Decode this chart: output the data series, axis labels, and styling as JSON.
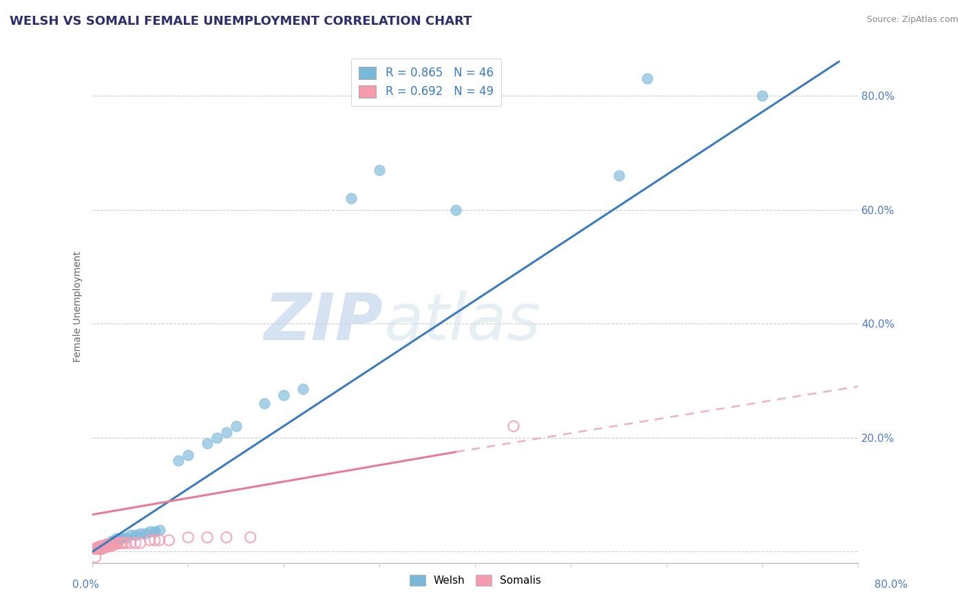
{
  "title": "WELSH VS SOMALI FEMALE UNEMPLOYMENT CORRELATION CHART",
  "source": "Source: ZipAtlas.com",
  "ylabel": "Female Unemployment",
  "y_ticks": [
    0.0,
    0.2,
    0.4,
    0.6,
    0.8
  ],
  "y_tick_labels": [
    "",
    "20.0%",
    "40.0%",
    "60.0%",
    "80.0%"
  ],
  "xlim": [
    0.0,
    0.8
  ],
  "ylim": [
    -0.02,
    0.88
  ],
  "welsh_R": 0.865,
  "welsh_N": 46,
  "somali_R": 0.692,
  "somali_N": 49,
  "welsh_color": "#7ab8d9",
  "somali_color": "#f49bae",
  "welsh_line_color": "#3a7bbf",
  "somali_line_solid_color": "#e87a96",
  "somali_line_dash_color": "#f0b0c0",
  "background_color": "#ffffff",
  "title_color": "#2e2e6e",
  "title_fontsize": 13,
  "welsh_scatter": [
    [
      0.003,
      0.005
    ],
    [
      0.005,
      0.005
    ],
    [
      0.007,
      0.005
    ],
    [
      0.008,
      0.008
    ],
    [
      0.008,
      0.01
    ],
    [
      0.009,
      0.005
    ],
    [
      0.009,
      0.008
    ],
    [
      0.01,
      0.005
    ],
    [
      0.01,
      0.008
    ],
    [
      0.01,
      0.01
    ],
    [
      0.012,
      0.008
    ],
    [
      0.012,
      0.01
    ],
    [
      0.013,
      0.01
    ],
    [
      0.015,
      0.01
    ],
    [
      0.015,
      0.013
    ],
    [
      0.018,
      0.015
    ],
    [
      0.02,
      0.015
    ],
    [
      0.02,
      0.018
    ],
    [
      0.022,
      0.018
    ],
    [
      0.025,
      0.02
    ],
    [
      0.025,
      0.023
    ],
    [
      0.028,
      0.022
    ],
    [
      0.03,
      0.025
    ],
    [
      0.035,
      0.025
    ],
    [
      0.04,
      0.03
    ],
    [
      0.045,
      0.03
    ],
    [
      0.05,
      0.032
    ],
    [
      0.055,
      0.032
    ],
    [
      0.06,
      0.035
    ],
    [
      0.065,
      0.035
    ],
    [
      0.07,
      0.038
    ],
    [
      0.09,
      0.16
    ],
    [
      0.1,
      0.17
    ],
    [
      0.12,
      0.19
    ],
    [
      0.13,
      0.2
    ],
    [
      0.14,
      0.21
    ],
    [
      0.15,
      0.22
    ],
    [
      0.18,
      0.26
    ],
    [
      0.2,
      0.275
    ],
    [
      0.22,
      0.285
    ],
    [
      0.27,
      0.62
    ],
    [
      0.3,
      0.67
    ],
    [
      0.38,
      0.6
    ],
    [
      0.55,
      0.66
    ],
    [
      0.58,
      0.83
    ],
    [
      0.7,
      0.8
    ]
  ],
  "somali_scatter": [
    [
      0.002,
      0.005
    ],
    [
      0.003,
      0.005
    ],
    [
      0.004,
      0.005
    ],
    [
      0.005,
      0.005
    ],
    [
      0.006,
      0.005
    ],
    [
      0.006,
      0.008
    ],
    [
      0.007,
      0.005
    ],
    [
      0.007,
      0.008
    ],
    [
      0.008,
      0.005
    ],
    [
      0.008,
      0.008
    ],
    [
      0.009,
      0.005
    ],
    [
      0.009,
      0.008
    ],
    [
      0.01,
      0.005
    ],
    [
      0.01,
      0.008
    ],
    [
      0.01,
      0.01
    ],
    [
      0.011,
      0.008
    ],
    [
      0.012,
      0.008
    ],
    [
      0.012,
      0.01
    ],
    [
      0.013,
      0.008
    ],
    [
      0.013,
      0.01
    ],
    [
      0.015,
      0.008
    ],
    [
      0.015,
      0.01
    ],
    [
      0.015,
      0.013
    ],
    [
      0.016,
      0.01
    ],
    [
      0.017,
      0.01
    ],
    [
      0.018,
      0.01
    ],
    [
      0.018,
      0.013
    ],
    [
      0.02,
      0.01
    ],
    [
      0.02,
      0.013
    ],
    [
      0.022,
      0.013
    ],
    [
      0.025,
      0.013
    ],
    [
      0.025,
      0.015
    ],
    [
      0.027,
      0.015
    ],
    [
      0.03,
      0.015
    ],
    [
      0.032,
      0.015
    ],
    [
      0.035,
      0.015
    ],
    [
      0.04,
      0.015
    ],
    [
      0.045,
      0.015
    ],
    [
      0.05,
      0.015
    ],
    [
      0.06,
      0.02
    ],
    [
      0.065,
      0.02
    ],
    [
      0.07,
      0.02
    ],
    [
      0.08,
      0.02
    ],
    [
      0.1,
      0.025
    ],
    [
      0.12,
      0.025
    ],
    [
      0.14,
      0.025
    ],
    [
      0.165,
      0.025
    ],
    [
      0.44,
      0.22
    ],
    [
      0.003,
      -0.01
    ]
  ],
  "welsh_line": {
    "x0": 0.0,
    "y0": 0.0,
    "x1": 0.78,
    "y1": 0.86
  },
  "somali_solid_line": {
    "x0": 0.0,
    "y0": 0.065,
    "x1": 0.38,
    "y1": 0.175
  },
  "somali_dash_line": {
    "x0": 0.38,
    "y0": 0.175,
    "x1": 0.8,
    "y1": 0.29
  }
}
